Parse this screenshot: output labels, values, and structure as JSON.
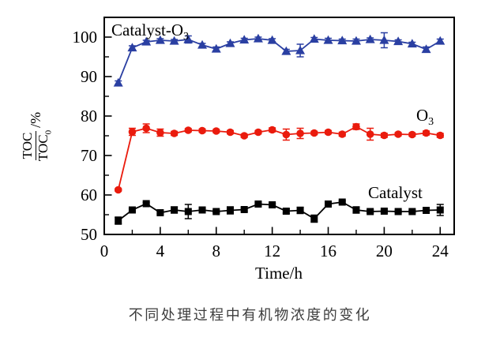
{
  "figure": {
    "caption": "不同处理过程中有机物浓度的变化"
  },
  "chart_data": {
    "type": "line",
    "title": "",
    "xlabel": "Time/h",
    "ylabel": {
      "numerator": "TOC",
      "denominator_base": "TOC",
      "denominator_sub": "0",
      "suffix": "/%"
    },
    "xlim": [
      0,
      25
    ],
    "ylim": [
      50,
      105
    ],
    "x_major_ticks": [
      0,
      4,
      8,
      12,
      16,
      20,
      24
    ],
    "x_minor_ticks": [
      2,
      6,
      10,
      14,
      18,
      22
    ],
    "y_major_ticks": [
      50,
      60,
      70,
      80,
      90,
      100
    ],
    "y_minor_ticks": [
      55,
      65,
      75,
      85,
      95
    ],
    "grid": false,
    "legend_position": "in-plot-annotations",
    "x": [
      1,
      2,
      3,
      4,
      5,
      6,
      7,
      8,
      9,
      10,
      11,
      12,
      13,
      14,
      15,
      16,
      17,
      18,
      19,
      20,
      21,
      22,
      23,
      24
    ],
    "series": [
      {
        "name": "Catalyst-O3",
        "label_base": "Catalyst-O",
        "label_sub": "3",
        "color": "#2a3fa2",
        "marker": "triangle",
        "values": [
          88.4,
          97.3,
          98.8,
          99.2,
          99.0,
          99.4,
          98.0,
          97.0,
          98.4,
          99.3,
          99.6,
          99.2,
          96.4,
          96.6,
          99.5,
          99.2,
          99.1,
          99.0,
          99.4,
          99.2,
          98.9,
          98.3,
          96.9,
          99.0
        ],
        "errors": [
          0.5,
          0.5,
          0.4,
          0.4,
          0.4,
          0.9,
          0.4,
          0.5,
          0.4,
          0.4,
          0.4,
          0.4,
          0.5,
          1.6,
          0.4,
          0.5,
          0.4,
          0.5,
          0.4,
          1.9,
          0.4,
          0.4,
          0.6,
          0.5
        ]
      },
      {
        "name": "O3",
        "label_base": "O",
        "label_sub": "3",
        "color": "#ea1b0d",
        "marker": "circle",
        "values": [
          61.3,
          76.0,
          76.9,
          75.8,
          75.6,
          76.4,
          76.3,
          76.2,
          75.9,
          75.0,
          75.9,
          76.5,
          75.3,
          75.6,
          75.7,
          75.9,
          75.4,
          77.3,
          75.4,
          75.1,
          75.4,
          75.3,
          75.7,
          75.1
        ],
        "errors": [
          0.3,
          0.9,
          1.1,
          0.9,
          0.5,
          0.4,
          0.4,
          0.4,
          0.4,
          0.4,
          0.4,
          0.5,
          1.4,
          1.3,
          0.4,
          0.4,
          0.5,
          0.7,
          1.5,
          0.5,
          0.4,
          0.4,
          0.5,
          0.5
        ]
      },
      {
        "name": "Catalyst",
        "label_base": "Catalyst",
        "label_sub": "",
        "color": "#000000",
        "marker": "square",
        "values": [
          53.5,
          56.2,
          57.8,
          55.5,
          56.2,
          55.8,
          56.2,
          55.8,
          56.1,
          56.3,
          57.7,
          57.5,
          55.9,
          56.1,
          54.0,
          57.7,
          58.2,
          56.2,
          55.8,
          55.9,
          55.8,
          55.8,
          56.1,
          56.2
        ],
        "errors": [
          0.9,
          0.3,
          0.3,
          0.3,
          0.8,
          1.8,
          0.4,
          0.3,
          0.9,
          0.4,
          0.3,
          0.3,
          0.5,
          0.8,
          0.9,
          0.3,
          0.3,
          0.8,
          0.4,
          0.3,
          0.3,
          0.3,
          0.4,
          1.4
        ]
      }
    ]
  }
}
